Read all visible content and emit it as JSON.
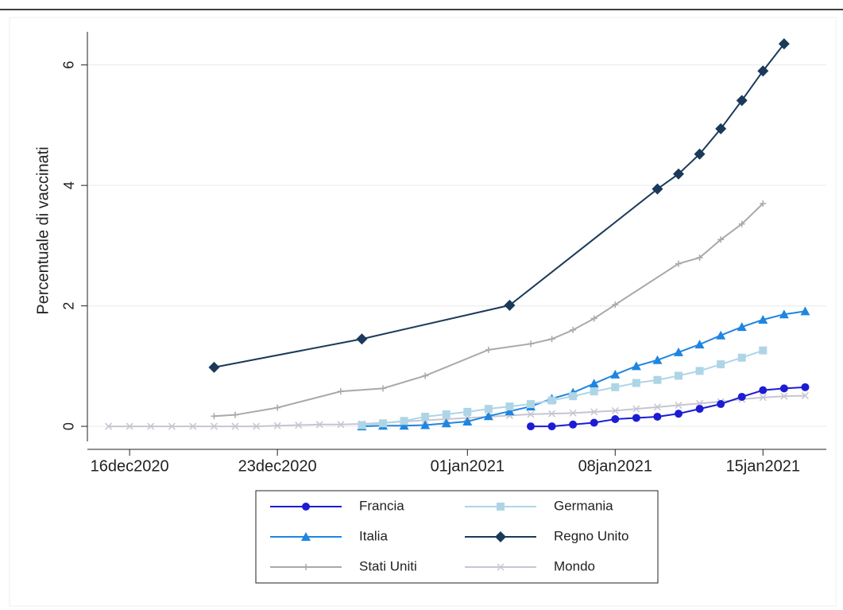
{
  "chart_data": {
    "type": "line",
    "ylabel": "Percentuale di vaccinati",
    "xlim": [
      "2020-12-14",
      "2021-01-18"
    ],
    "xticks": [
      {
        "value": "2020-12-16",
        "label": "16dec2020"
      },
      {
        "value": "2020-12-23",
        "label": "23dec2020"
      },
      {
        "value": "2021-01-01",
        "label": "01jan2021"
      },
      {
        "value": "2021-01-08",
        "label": "08jan2021"
      },
      {
        "value": "2021-01-15",
        "label": "15jan2021"
      }
    ],
    "ylim": [
      -0.25,
      6.55
    ],
    "yticks": [
      0,
      2,
      4,
      6
    ],
    "grid": true,
    "series": [
      {
        "name": "Francia",
        "color": "#1c1cd6",
        "marker": "circle",
        "x": [
          "2021-01-04",
          "2021-01-05",
          "2021-01-06",
          "2021-01-07",
          "2021-01-08",
          "2021-01-09",
          "2021-01-10",
          "2021-01-11",
          "2021-01-12",
          "2021-01-13",
          "2021-01-14",
          "2021-01-15",
          "2021-01-16",
          "2021-01-17"
        ],
        "values": [
          0,
          0,
          0.03,
          0.06,
          0.12,
          0.14,
          0.16,
          0.21,
          0.29,
          0.37,
          0.49,
          0.6,
          0.63,
          0.65
        ]
      },
      {
        "name": "Germania",
        "color": "#aed5e6",
        "marker": "square",
        "x": [
          "2020-12-27",
          "2020-12-28",
          "2020-12-29",
          "2020-12-30",
          "2020-12-31",
          "2021-01-01",
          "2021-01-02",
          "2021-01-03",
          "2021-01-04",
          "2021-01-05",
          "2021-01-06",
          "2021-01-07",
          "2021-01-08",
          "2021-01-09",
          "2021-01-10",
          "2021-01-11",
          "2021-01-12",
          "2021-01-13",
          "2021-01-14",
          "2021-01-15"
        ],
        "values": [
          0.02,
          0.05,
          0.09,
          0.16,
          0.2,
          0.24,
          0.29,
          0.33,
          0.37,
          0.43,
          0.5,
          0.58,
          0.65,
          0.72,
          0.77,
          0.84,
          0.92,
          1.03,
          1.14,
          1.26
        ]
      },
      {
        "name": "Italia",
        "color": "#1f86e0",
        "marker": "triangle",
        "x": [
          "2020-12-27",
          "2020-12-28",
          "2020-12-29",
          "2020-12-30",
          "2020-12-31",
          "2021-01-01",
          "2021-01-02",
          "2021-01-03",
          "2021-01-04",
          "2021-01-05",
          "2021-01-06",
          "2021-01-07",
          "2021-01-08",
          "2021-01-09",
          "2021-01-10",
          "2021-01-11",
          "2021-01-12",
          "2021-01-13",
          "2021-01-14",
          "2021-01-15",
          "2021-01-16",
          "2021-01-17"
        ],
        "values": [
          0,
          0.01,
          0.01,
          0.02,
          0.05,
          0.08,
          0.17,
          0.25,
          0.33,
          0.46,
          0.56,
          0.71,
          0.86,
          1,
          1.1,
          1.23,
          1.36,
          1.51,
          1.65,
          1.77,
          1.86,
          1.91
        ]
      },
      {
        "name": "Regno Unito",
        "color": "#1b3a5a",
        "marker": "diamond",
        "x": [
          "2020-12-20",
          "2020-12-27",
          "2021-01-03",
          "2021-01-10",
          "2021-01-11",
          "2021-01-12",
          "2021-01-13",
          "2021-01-14",
          "2021-01-15",
          "2021-01-16"
        ],
        "values": [
          0.98,
          1.45,
          2.01,
          3.94,
          4.19,
          4.52,
          4.94,
          5.41,
          5.9,
          6.35
        ]
      },
      {
        "name": "Stati Uniti",
        "color": "#a9a9a9",
        "marker": "plus",
        "x": [
          "2020-12-20",
          "2020-12-21",
          "2020-12-23",
          "2020-12-26",
          "2020-12-28",
          "2020-12-30",
          "2021-01-02",
          "2021-01-04",
          "2021-01-05",
          "2021-01-06",
          "2021-01-07",
          "2021-01-08",
          "2021-01-11",
          "2021-01-12",
          "2021-01-13",
          "2021-01-14",
          "2021-01-15"
        ],
        "values": [
          0.17,
          0.19,
          0.31,
          0.58,
          0.63,
          0.84,
          1.27,
          1.37,
          1.45,
          1.6,
          1.79,
          2.02,
          2.7,
          2.8,
          3.1,
          3.36,
          3.7
        ]
      },
      {
        "name": "Mondo",
        "color": "#c6c6d2",
        "marker": "x",
        "x": [
          "2020-12-15",
          "2020-12-16",
          "2020-12-17",
          "2020-12-18",
          "2020-12-19",
          "2020-12-20",
          "2020-12-21",
          "2020-12-22",
          "2020-12-23",
          "2020-12-24",
          "2020-12-25",
          "2020-12-26",
          "2020-12-27",
          "2020-12-28",
          "2020-12-29",
          "2020-12-30",
          "2020-12-31",
          "2021-01-01",
          "2021-01-02",
          "2021-01-03",
          "2021-01-04",
          "2021-01-05",
          "2021-01-06",
          "2021-01-07",
          "2021-01-08",
          "2021-01-09",
          "2021-01-10",
          "2021-01-11",
          "2021-01-12",
          "2021-01-13",
          "2021-01-14",
          "2021-01-15",
          "2021-01-16",
          "2021-01-17"
        ],
        "values": [
          0,
          0,
          0,
          0,
          0,
          0,
          0,
          0,
          0.01,
          0.02,
          0.03,
          0.03,
          0.04,
          0.06,
          0.08,
          0.1,
          0.12,
          0.14,
          0.16,
          0.18,
          0.2,
          0.21,
          0.22,
          0.24,
          0.26,
          0.29,
          0.32,
          0.35,
          0.38,
          0.41,
          0.45,
          0.48,
          0.5,
          0.51
        ]
      }
    ]
  }
}
